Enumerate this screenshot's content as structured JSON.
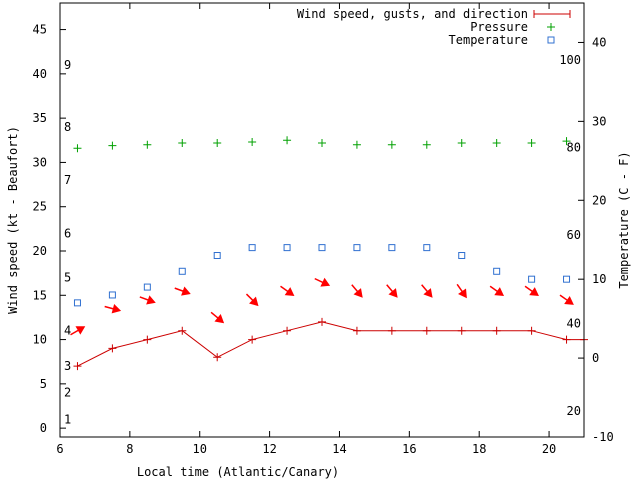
{
  "chart_data": {
    "type": "line",
    "xlabel": "Local time (Atlantic/Canary)",
    "ylabel_left": "Wind speed (kt - Beaufort)",
    "ylabel_right": "Temperature (C - F)",
    "xlim": [
      6,
      21
    ],
    "ylim_left": [
      -1,
      48
    ],
    "ylim_right": [
      -10,
      45
    ],
    "x_ticks": [
      6,
      8,
      10,
      12,
      14,
      16,
      18,
      20
    ],
    "y_left_ticks": [
      0,
      5,
      10,
      15,
      20,
      25,
      30,
      35,
      40,
      45
    ],
    "y_right_ticks": [
      -10,
      0,
      10,
      20,
      30,
      40
    ],
    "beaufort_labels": [
      {
        "label": "1",
        "kt": 1
      },
      {
        "label": "2",
        "kt": 4
      },
      {
        "label": "3",
        "kt": 7
      },
      {
        "label": "4",
        "kt": 11
      },
      {
        "label": "5",
        "kt": 17
      },
      {
        "label": "6",
        "kt": 22
      },
      {
        "label": "7",
        "kt": 28
      },
      {
        "label": "8",
        "kt": 34
      },
      {
        "label": "9",
        "kt": 41
      }
    ],
    "fahrenheit_labels": [
      {
        "label": "20",
        "celsius": -6.7
      },
      {
        "label": "40",
        "celsius": 4.4
      },
      {
        "label": "60",
        "celsius": 15.6
      },
      {
        "label": "80",
        "celsius": 26.7
      },
      {
        "label": "100",
        "celsius": 37.8
      }
    ],
    "series": [
      {
        "name": "Wind speed, gusts, and direction",
        "color": "#cc0000",
        "axis": "left",
        "x": [
          6.5,
          7.5,
          8.5,
          9.5,
          10.5,
          11.5,
          12.5,
          13.5,
          14.5,
          15.5,
          16.5,
          17.5,
          18.5,
          19.5,
          20.5,
          21
        ],
        "values": [
          7,
          9,
          10,
          11,
          8,
          10,
          11,
          12,
          11,
          11,
          11,
          11,
          11,
          11,
          10,
          10
        ]
      },
      {
        "name": "Pressure",
        "color": "#00a000",
        "axis": "left",
        "x": [
          6.5,
          7.5,
          8.5,
          9.5,
          10.5,
          11.5,
          12.5,
          13.5,
          14.5,
          15.5,
          16.5,
          17.5,
          18.5,
          19.5,
          20.5
        ],
        "values": [
          31.6,
          31.9,
          32.0,
          32.2,
          32.2,
          32.3,
          32.5,
          32.2,
          32.0,
          32.0,
          32.0,
          32.2,
          32.2,
          32.2,
          32.4
        ]
      },
      {
        "name": "Temperature",
        "color": "#3070d0",
        "axis": "right",
        "x": [
          6.5,
          7.5,
          8.5,
          9.5,
          10.5,
          11.5,
          12.5,
          13.5,
          14.5,
          15.5,
          16.5,
          17.5,
          18.5,
          19.5,
          20.5
        ],
        "values": [
          7,
          8,
          9,
          11,
          13,
          14,
          14,
          14,
          14,
          14,
          14,
          13,
          11,
          10,
          10
        ]
      }
    ],
    "wind_arrows": [
      {
        "x": 6.5,
        "kt": 11,
        "angle": -30
      },
      {
        "x": 7.5,
        "kt": 13.5,
        "angle": 15
      },
      {
        "x": 8.5,
        "kt": 14.5,
        "angle": 20
      },
      {
        "x": 9.5,
        "kt": 15.5,
        "angle": 20
      },
      {
        "x": 10.5,
        "kt": 12.5,
        "angle": 40
      },
      {
        "x": 11.5,
        "kt": 14.5,
        "angle": 45
      },
      {
        "x": 12.5,
        "kt": 15.5,
        "angle": 35
      },
      {
        "x": 13.5,
        "kt": 16.5,
        "angle": 25
      },
      {
        "x": 14.5,
        "kt": 15.5,
        "angle": 50
      },
      {
        "x": 15.5,
        "kt": 15.5,
        "angle": 50
      },
      {
        "x": 16.5,
        "kt": 15.5,
        "angle": 50
      },
      {
        "x": 17.5,
        "kt": 15.5,
        "angle": 55
      },
      {
        "x": 18.5,
        "kt": 15.5,
        "angle": 35
      },
      {
        "x": 19.5,
        "kt": 15.5,
        "angle": 35
      },
      {
        "x": 20.5,
        "kt": 14.5,
        "angle": 35
      }
    ]
  }
}
